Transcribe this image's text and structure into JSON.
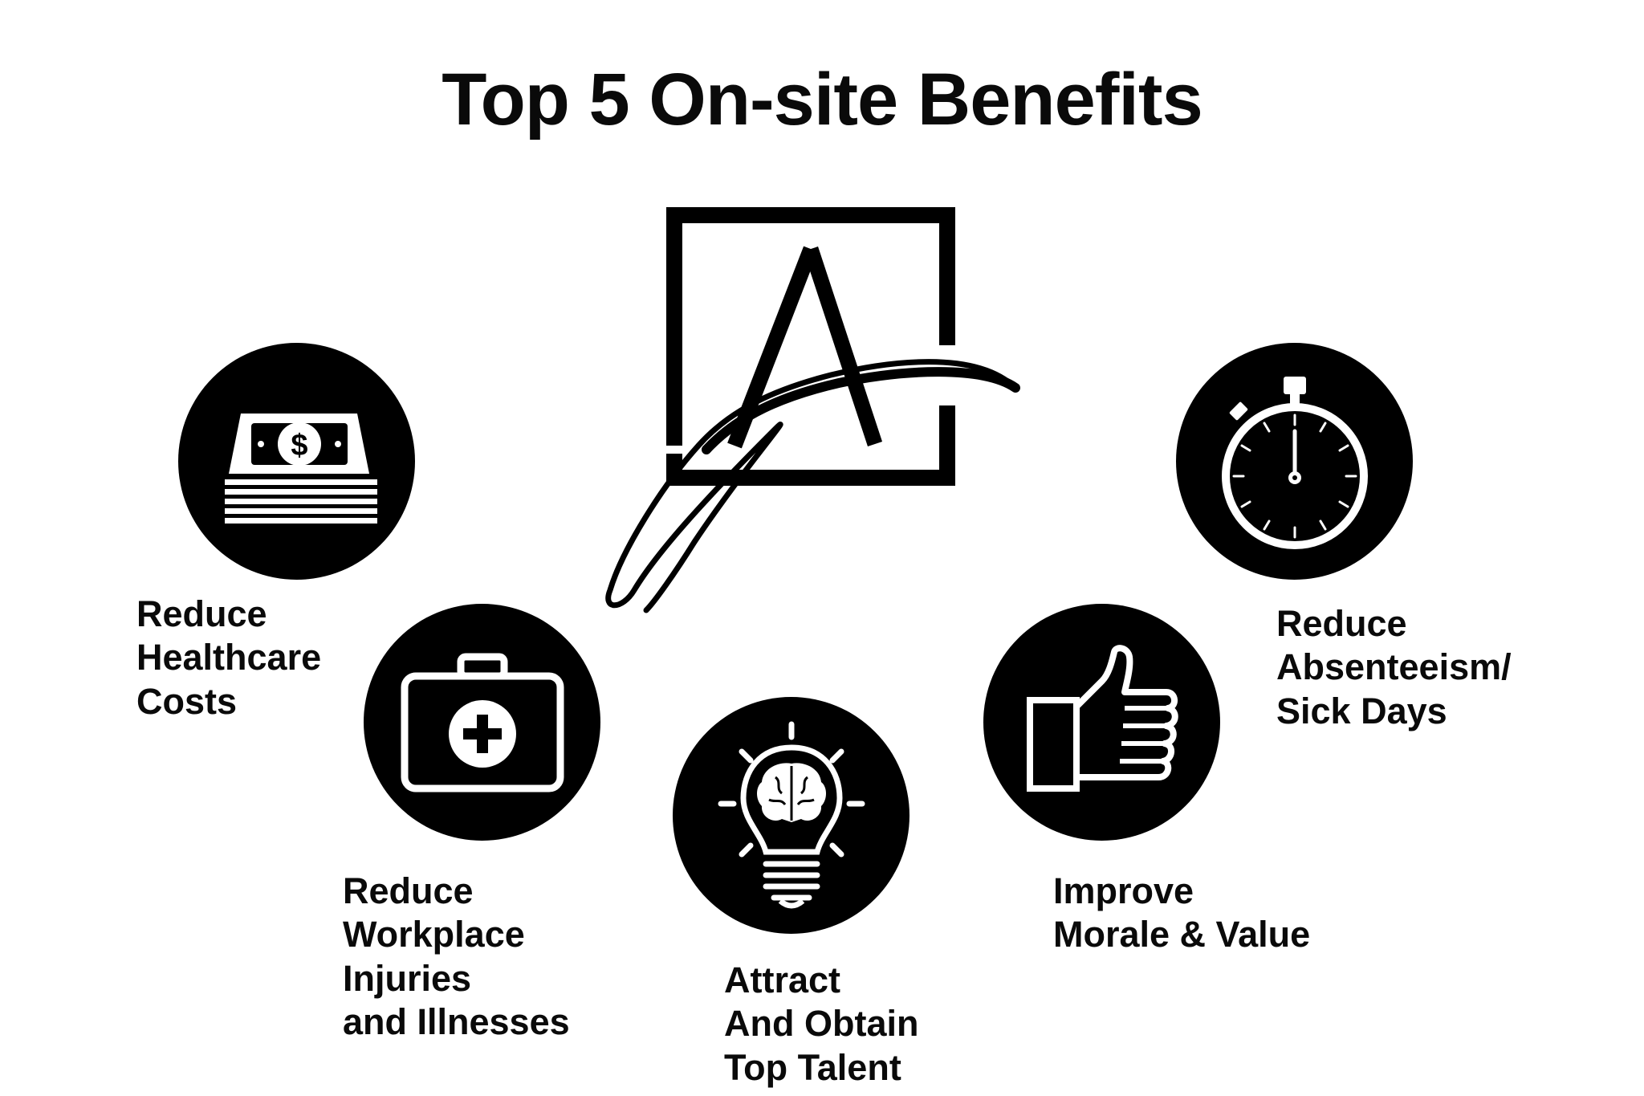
{
  "title": "Top 5 On-site Benefits",
  "logo": {
    "icon": "script-a-logo-icon",
    "letter": "A"
  },
  "benefits": [
    {
      "id": "healthcare-costs",
      "icon": "money-stack-icon",
      "lines": [
        "Reduce",
        "Healthcare",
        "Costs"
      ]
    },
    {
      "id": "workplace-injuries",
      "icon": "first-aid-kit-icon",
      "lines": [
        "Reduce",
        "Workplace",
        "Injuries",
        "and Illnesses"
      ]
    },
    {
      "id": "top-talent",
      "icon": "lightbulb-brain-icon",
      "lines": [
        "Attract",
        "And Obtain",
        "Top Talent"
      ]
    },
    {
      "id": "morale-value",
      "icon": "thumbs-up-icon",
      "lines": [
        "Improve",
        "Morale & Value"
      ]
    },
    {
      "id": "absenteeism",
      "icon": "stopwatch-icon",
      "lines": [
        "Reduce",
        "Absenteeism/",
        "Sick Days"
      ]
    }
  ],
  "colors": {
    "icon_bg": "#000000",
    "icon_fg": "#ffffff",
    "text": "#0a0a0a"
  }
}
